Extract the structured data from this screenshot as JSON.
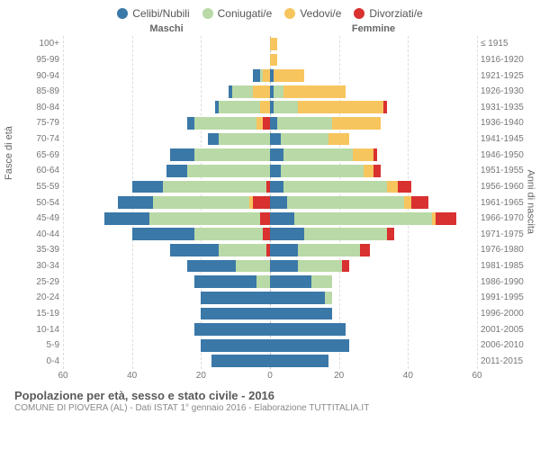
{
  "legend": [
    {
      "label": "Celibi/Nubili",
      "color": "#3a78a8"
    },
    {
      "label": "Coniugati/e",
      "color": "#b9d9a6"
    },
    {
      "label": "Vedovi/e",
      "color": "#f7c55e"
    },
    {
      "label": "Divorziati/e",
      "color": "#d93030"
    }
  ],
  "gender_left": "Maschi",
  "gender_right": "Femmine",
  "y_label_left": "Fasce di età",
  "y_label_right": "Anni di nascita",
  "x_max": 60,
  "x_ticks": [
    60,
    40,
    20,
    0,
    20,
    40,
    60
  ],
  "title": "Popolazione per età, sesso e stato civile - 2016",
  "subtitle": "COMUNE DI PIOVERA (AL) - Dati ISTAT 1° gennaio 2016 - Elaborazione TUTTITALIA.IT",
  "colors": {
    "single": "#3a78a8",
    "married": "#b9d9a6",
    "widowed": "#f7c55e",
    "divorced": "#d93030",
    "grid": "#dddddd",
    "text": "#666666"
  },
  "rows": [
    {
      "age": "100+",
      "years": "≤ 1915",
      "m": [
        0,
        0,
        0,
        0
      ],
      "f": [
        0,
        0,
        2,
        0
      ]
    },
    {
      "age": "95-99",
      "years": "1916-1920",
      "m": [
        0,
        0,
        0,
        0
      ],
      "f": [
        0,
        0,
        2,
        0
      ]
    },
    {
      "age": "90-94",
      "years": "1921-1925",
      "m": [
        2,
        1,
        2,
        0
      ],
      "f": [
        1,
        0,
        9,
        0
      ]
    },
    {
      "age": "85-89",
      "years": "1926-1930",
      "m": [
        1,
        6,
        5,
        0
      ],
      "f": [
        1,
        3,
        18,
        0
      ]
    },
    {
      "age": "80-84",
      "years": "1931-1935",
      "m": [
        1,
        12,
        3,
        0
      ],
      "f": [
        1,
        7,
        25,
        1
      ]
    },
    {
      "age": "75-79",
      "years": "1936-1940",
      "m": [
        2,
        18,
        2,
        2
      ],
      "f": [
        2,
        16,
        14,
        0
      ]
    },
    {
      "age": "70-74",
      "years": "1941-1945",
      "m": [
        3,
        15,
        0,
        0
      ],
      "f": [
        3,
        14,
        6,
        0
      ]
    },
    {
      "age": "65-69",
      "years": "1946-1950",
      "m": [
        7,
        22,
        0,
        0
      ],
      "f": [
        4,
        20,
        6,
        1
      ]
    },
    {
      "age": "60-64",
      "years": "1951-1955",
      "m": [
        6,
        24,
        0,
        0
      ],
      "f": [
        3,
        24,
        3,
        2
      ]
    },
    {
      "age": "55-59",
      "years": "1956-1960",
      "m": [
        9,
        30,
        0,
        1
      ],
      "f": [
        4,
        30,
        3,
        4
      ]
    },
    {
      "age": "50-54",
      "years": "1961-1965",
      "m": [
        10,
        28,
        1,
        5
      ],
      "f": [
        5,
        34,
        2,
        5
      ]
    },
    {
      "age": "45-49",
      "years": "1966-1970",
      "m": [
        13,
        32,
        0,
        3
      ],
      "f": [
        7,
        40,
        1,
        6
      ]
    },
    {
      "age": "40-44",
      "years": "1971-1975",
      "m": [
        18,
        20,
        0,
        2
      ],
      "f": [
        10,
        24,
        0,
        2
      ]
    },
    {
      "age": "35-39",
      "years": "1976-1980",
      "m": [
        14,
        14,
        0,
        1
      ],
      "f": [
        8,
        18,
        0,
        3
      ]
    },
    {
      "age": "30-34",
      "years": "1981-1985",
      "m": [
        14,
        10,
        0,
        0
      ],
      "f": [
        8,
        13,
        0,
        2
      ]
    },
    {
      "age": "25-29",
      "years": "1986-1990",
      "m": [
        18,
        4,
        0,
        0
      ],
      "f": [
        12,
        6,
        0,
        0
      ]
    },
    {
      "age": "20-24",
      "years": "1991-1995",
      "m": [
        20,
        0,
        0,
        0
      ],
      "f": [
        16,
        2,
        0,
        0
      ]
    },
    {
      "age": "15-19",
      "years": "1996-2000",
      "m": [
        20,
        0,
        0,
        0
      ],
      "f": [
        18,
        0,
        0,
        0
      ]
    },
    {
      "age": "10-14",
      "years": "2001-2005",
      "m": [
        22,
        0,
        0,
        0
      ],
      "f": [
        22,
        0,
        0,
        0
      ]
    },
    {
      "age": "5-9",
      "years": "2006-2010",
      "m": [
        20,
        0,
        0,
        0
      ],
      "f": [
        23,
        0,
        0,
        0
      ]
    },
    {
      "age": "0-4",
      "years": "2011-2015",
      "m": [
        17,
        0,
        0,
        0
      ],
      "f": [
        17,
        0,
        0,
        0
      ]
    }
  ]
}
